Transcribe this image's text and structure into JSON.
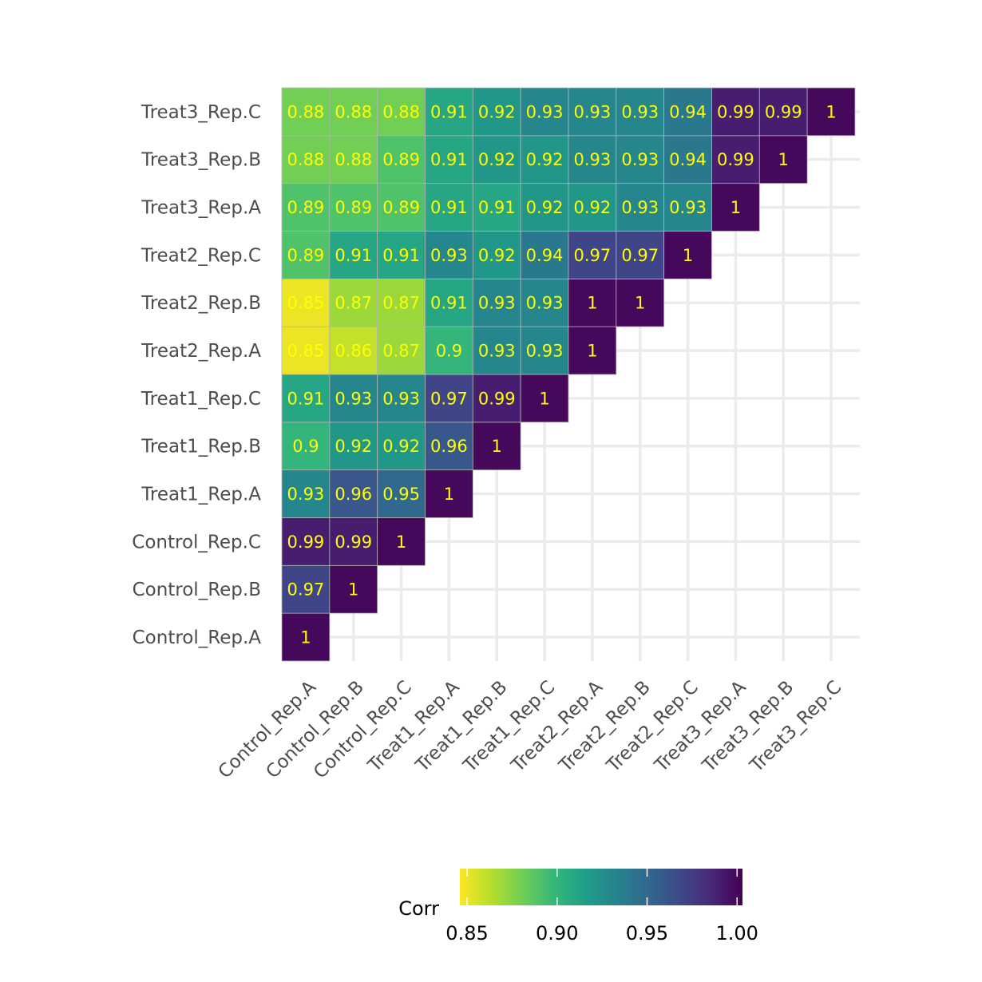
{
  "chart_data": {
    "type": "heatmap",
    "title": "",
    "xlabel": "",
    "ylabel": "",
    "samples": [
      "Control_Rep.A",
      "Control_Rep.B",
      "Control_Rep.C",
      "Treat1_Rep.A",
      "Treat1_Rep.B",
      "Treat1_Rep.C",
      "Treat2_Rep.A",
      "Treat2_Rep.B",
      "Treat2_Rep.C",
      "Treat3_Rep.A",
      "Treat3_Rep.B",
      "Treat3_Rep.C"
    ],
    "cells": [
      {
        "x": "Control_Rep.A",
        "y": "Control_Rep.A",
        "value": 1.0,
        "label": "1"
      },
      {
        "x": "Control_Rep.A",
        "y": "Control_Rep.B",
        "value": 0.97,
        "label": "0.97"
      },
      {
        "x": "Control_Rep.B",
        "y": "Control_Rep.B",
        "value": 1.0,
        "label": "1"
      },
      {
        "x": "Control_Rep.A",
        "y": "Control_Rep.C",
        "value": 0.99,
        "label": "0.99"
      },
      {
        "x": "Control_Rep.B",
        "y": "Control_Rep.C",
        "value": 0.99,
        "label": "0.99"
      },
      {
        "x": "Control_Rep.C",
        "y": "Control_Rep.C",
        "value": 1.0,
        "label": "1"
      },
      {
        "x": "Control_Rep.A",
        "y": "Treat1_Rep.A",
        "value": 0.93,
        "label": "0.93"
      },
      {
        "x": "Control_Rep.B",
        "y": "Treat1_Rep.A",
        "value": 0.96,
        "label": "0.96"
      },
      {
        "x": "Control_Rep.C",
        "y": "Treat1_Rep.A",
        "value": 0.95,
        "label": "0.95"
      },
      {
        "x": "Treat1_Rep.A",
        "y": "Treat1_Rep.A",
        "value": 1.0,
        "label": "1"
      },
      {
        "x": "Control_Rep.A",
        "y": "Treat1_Rep.B",
        "value": 0.9,
        "label": "0.9"
      },
      {
        "x": "Control_Rep.B",
        "y": "Treat1_Rep.B",
        "value": 0.92,
        "label": "0.92"
      },
      {
        "x": "Control_Rep.C",
        "y": "Treat1_Rep.B",
        "value": 0.92,
        "label": "0.92"
      },
      {
        "x": "Treat1_Rep.A",
        "y": "Treat1_Rep.B",
        "value": 0.96,
        "label": "0.96"
      },
      {
        "x": "Treat1_Rep.B",
        "y": "Treat1_Rep.B",
        "value": 1.0,
        "label": "1"
      },
      {
        "x": "Control_Rep.A",
        "y": "Treat1_Rep.C",
        "value": 0.91,
        "label": "0.91"
      },
      {
        "x": "Control_Rep.B",
        "y": "Treat1_Rep.C",
        "value": 0.93,
        "label": "0.93"
      },
      {
        "x": "Control_Rep.C",
        "y": "Treat1_Rep.C",
        "value": 0.93,
        "label": "0.93"
      },
      {
        "x": "Treat1_Rep.A",
        "y": "Treat1_Rep.C",
        "value": 0.97,
        "label": "0.97"
      },
      {
        "x": "Treat1_Rep.B",
        "y": "Treat1_Rep.C",
        "value": 0.99,
        "label": "0.99"
      },
      {
        "x": "Treat1_Rep.C",
        "y": "Treat1_Rep.C",
        "value": 1.0,
        "label": "1"
      },
      {
        "x": "Control_Rep.A",
        "y": "Treat2_Rep.A",
        "value": 0.85,
        "label": "0.85"
      },
      {
        "x": "Control_Rep.B",
        "y": "Treat2_Rep.A",
        "value": 0.86,
        "label": "0.86"
      },
      {
        "x": "Control_Rep.C",
        "y": "Treat2_Rep.A",
        "value": 0.87,
        "label": "0.87"
      },
      {
        "x": "Treat1_Rep.A",
        "y": "Treat2_Rep.A",
        "value": 0.9,
        "label": "0.9"
      },
      {
        "x": "Treat1_Rep.B",
        "y": "Treat2_Rep.A",
        "value": 0.93,
        "label": "0.93"
      },
      {
        "x": "Treat1_Rep.C",
        "y": "Treat2_Rep.A",
        "value": 0.93,
        "label": "0.93"
      },
      {
        "x": "Treat2_Rep.A",
        "y": "Treat2_Rep.A",
        "value": 1.0,
        "label": "1"
      },
      {
        "x": "Control_Rep.A",
        "y": "Treat2_Rep.B",
        "value": 0.85,
        "label": "0.85"
      },
      {
        "x": "Control_Rep.B",
        "y": "Treat2_Rep.B",
        "value": 0.87,
        "label": "0.87"
      },
      {
        "x": "Control_Rep.C",
        "y": "Treat2_Rep.B",
        "value": 0.87,
        "label": "0.87"
      },
      {
        "x": "Treat1_Rep.A",
        "y": "Treat2_Rep.B",
        "value": 0.91,
        "label": "0.91"
      },
      {
        "x": "Treat1_Rep.B",
        "y": "Treat2_Rep.B",
        "value": 0.93,
        "label": "0.93"
      },
      {
        "x": "Treat1_Rep.C",
        "y": "Treat2_Rep.B",
        "value": 0.93,
        "label": "0.93"
      },
      {
        "x": "Treat2_Rep.A",
        "y": "Treat2_Rep.B",
        "value": 1.0,
        "label": "1"
      },
      {
        "x": "Treat2_Rep.B",
        "y": "Treat2_Rep.B",
        "value": 1.0,
        "label": "1"
      },
      {
        "x": "Control_Rep.A",
        "y": "Treat2_Rep.C",
        "value": 0.89,
        "label": "0.89"
      },
      {
        "x": "Control_Rep.B",
        "y": "Treat2_Rep.C",
        "value": 0.91,
        "label": "0.91"
      },
      {
        "x": "Control_Rep.C",
        "y": "Treat2_Rep.C",
        "value": 0.91,
        "label": "0.91"
      },
      {
        "x": "Treat1_Rep.A",
        "y": "Treat2_Rep.C",
        "value": 0.93,
        "label": "0.93"
      },
      {
        "x": "Treat1_Rep.B",
        "y": "Treat2_Rep.C",
        "value": 0.92,
        "label": "0.92"
      },
      {
        "x": "Treat1_Rep.C",
        "y": "Treat2_Rep.C",
        "value": 0.94,
        "label": "0.94"
      },
      {
        "x": "Treat2_Rep.A",
        "y": "Treat2_Rep.C",
        "value": 0.97,
        "label": "0.97"
      },
      {
        "x": "Treat2_Rep.B",
        "y": "Treat2_Rep.C",
        "value": 0.97,
        "label": "0.97"
      },
      {
        "x": "Treat2_Rep.C",
        "y": "Treat2_Rep.C",
        "value": 1.0,
        "label": "1"
      },
      {
        "x": "Control_Rep.A",
        "y": "Treat3_Rep.A",
        "value": 0.89,
        "label": "0.89"
      },
      {
        "x": "Control_Rep.B",
        "y": "Treat3_Rep.A",
        "value": 0.89,
        "label": "0.89"
      },
      {
        "x": "Control_Rep.C",
        "y": "Treat3_Rep.A",
        "value": 0.89,
        "label": "0.89"
      },
      {
        "x": "Treat1_Rep.A",
        "y": "Treat3_Rep.A",
        "value": 0.91,
        "label": "0.91"
      },
      {
        "x": "Treat1_Rep.B",
        "y": "Treat3_Rep.A",
        "value": 0.91,
        "label": "0.91"
      },
      {
        "x": "Treat1_Rep.C",
        "y": "Treat3_Rep.A",
        "value": 0.92,
        "label": "0.92"
      },
      {
        "x": "Treat2_Rep.A",
        "y": "Treat3_Rep.A",
        "value": 0.92,
        "label": "0.92"
      },
      {
        "x": "Treat2_Rep.B",
        "y": "Treat3_Rep.A",
        "value": 0.93,
        "label": "0.93"
      },
      {
        "x": "Treat2_Rep.C",
        "y": "Treat3_Rep.A",
        "value": 0.93,
        "label": "0.93"
      },
      {
        "x": "Treat3_Rep.A",
        "y": "Treat3_Rep.A",
        "value": 1.0,
        "label": "1"
      },
      {
        "x": "Control_Rep.A",
        "y": "Treat3_Rep.B",
        "value": 0.88,
        "label": "0.88"
      },
      {
        "x": "Control_Rep.B",
        "y": "Treat3_Rep.B",
        "value": 0.88,
        "label": "0.88"
      },
      {
        "x": "Control_Rep.C",
        "y": "Treat3_Rep.B",
        "value": 0.89,
        "label": "0.89"
      },
      {
        "x": "Treat1_Rep.A",
        "y": "Treat3_Rep.B",
        "value": 0.91,
        "label": "0.91"
      },
      {
        "x": "Treat1_Rep.B",
        "y": "Treat3_Rep.B",
        "value": 0.92,
        "label": "0.92"
      },
      {
        "x": "Treat1_Rep.C",
        "y": "Treat3_Rep.B",
        "value": 0.92,
        "label": "0.92"
      },
      {
        "x": "Treat2_Rep.A",
        "y": "Treat3_Rep.B",
        "value": 0.93,
        "label": "0.93"
      },
      {
        "x": "Treat2_Rep.B",
        "y": "Treat3_Rep.B",
        "value": 0.93,
        "label": "0.93"
      },
      {
        "x": "Treat2_Rep.C",
        "y": "Treat3_Rep.B",
        "value": 0.94,
        "label": "0.94"
      },
      {
        "x": "Treat3_Rep.A",
        "y": "Treat3_Rep.B",
        "value": 0.99,
        "label": "0.99"
      },
      {
        "x": "Treat3_Rep.B",
        "y": "Treat3_Rep.B",
        "value": 1.0,
        "label": "1"
      },
      {
        "x": "Control_Rep.A",
        "y": "Treat3_Rep.C",
        "value": 0.88,
        "label": "0.88"
      },
      {
        "x": "Control_Rep.B",
        "y": "Treat3_Rep.C",
        "value": 0.88,
        "label": "0.88"
      },
      {
        "x": "Control_Rep.C",
        "y": "Treat3_Rep.C",
        "value": 0.88,
        "label": "0.88"
      },
      {
        "x": "Treat1_Rep.A",
        "y": "Treat3_Rep.C",
        "value": 0.91,
        "label": "0.91"
      },
      {
        "x": "Treat1_Rep.B",
        "y": "Treat3_Rep.C",
        "value": 0.92,
        "label": "0.92"
      },
      {
        "x": "Treat1_Rep.C",
        "y": "Treat3_Rep.C",
        "value": 0.93,
        "label": "0.93"
      },
      {
        "x": "Treat2_Rep.A",
        "y": "Treat3_Rep.C",
        "value": 0.93,
        "label": "0.93"
      },
      {
        "x": "Treat2_Rep.B",
        "y": "Treat3_Rep.C",
        "value": 0.93,
        "label": "0.93"
      },
      {
        "x": "Treat2_Rep.C",
        "y": "Treat3_Rep.C",
        "value": 0.94,
        "label": "0.94"
      },
      {
        "x": "Treat3_Rep.A",
        "y": "Treat3_Rep.C",
        "value": 0.99,
        "label": "0.99"
      },
      {
        "x": "Treat3_Rep.B",
        "y": "Treat3_Rep.C",
        "value": 0.99,
        "label": "0.99"
      },
      {
        "x": "Treat3_Rep.C",
        "y": "Treat3_Rep.C",
        "value": 1.0,
        "label": "1"
      }
    ],
    "colorbar": {
      "title": "Corr",
      "range": [
        0.846,
        1.003
      ],
      "ticks": [
        0.85,
        0.9,
        0.95,
        1.0
      ],
      "tick_labels": [
        "0.85",
        "0.90",
        "0.95",
        "1.00"
      ],
      "colormap": "viridis (reversed)",
      "stops": [
        "#fde725",
        "#b5de2b",
        "#6ece58",
        "#35b779",
        "#1f9e89",
        "#26828e",
        "#31688e",
        "#3e4989",
        "#482878",
        "#440154"
      ]
    },
    "cell_label_color": "#ffff00",
    "grid": true,
    "legend_position": "bottom"
  }
}
